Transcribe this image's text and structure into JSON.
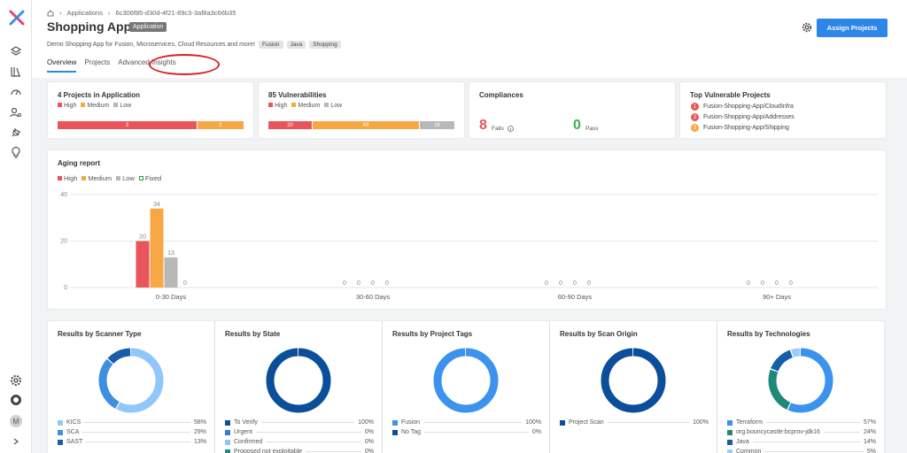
{
  "breadcrumb": {
    "home_icon": "home-icon",
    "applications": "Applications",
    "id": "6c306f85-d30d-4f21-89c3-3af8a3c66b35"
  },
  "header": {
    "title": "Shopping App",
    "badge": "Application",
    "description": "Demo Shopping App for Fusion, Microservices, Cloud Resources and more!",
    "tags": [
      "Fusion",
      "Java",
      "Shopping"
    ],
    "assign_button": "Assign Projects",
    "tabs": [
      "Overview",
      "Projects",
      "Advanced Insights"
    ]
  },
  "colors": {
    "high": "#e8555a",
    "medium": "#f7a743",
    "low": "#b8b8b8",
    "fixed": "#2e9b3a",
    "accent": "#2c87e8"
  },
  "projects_card": {
    "title": "4 Projects in Application",
    "legend": [
      "High",
      "Medium",
      "Low"
    ],
    "bar": {
      "high": 3,
      "medium": 1,
      "low": 0
    }
  },
  "vuln_card": {
    "title": "85 Vulnerabilities",
    "legend": [
      "High",
      "Medium",
      "Low"
    ],
    "bar": {
      "high": 20,
      "medium": 49,
      "low": 16
    }
  },
  "compliance_card": {
    "title": "Compliances",
    "fails_value": "8",
    "fails_label": "Fails",
    "pass_value": "0",
    "pass_label": "Pass"
  },
  "top_projects": {
    "title": "Top Vulnerable Projects",
    "items": [
      {
        "rank": "1",
        "name": "Fusion-Shopping-App/CloudInfra"
      },
      {
        "rank": "2",
        "name": "Fusion-Shopping-App/Addresses"
      },
      {
        "rank": "3",
        "name": "Fusion-Shopping-App/Shipping"
      }
    ]
  },
  "chart_data": {
    "type": "bar",
    "title": "Aging report",
    "categories": [
      "0-30 Days",
      "30-60 Days",
      "60-90 Days",
      "90+ Days"
    ],
    "series": [
      {
        "name": "High",
        "values": [
          20,
          0,
          0,
          0
        ]
      },
      {
        "name": "Medium",
        "values": [
          34,
          0,
          0,
          0
        ]
      },
      {
        "name": "Low",
        "values": [
          13,
          0,
          0,
          0
        ]
      },
      {
        "name": "Fixed",
        "values": [
          0,
          0,
          0,
          0
        ]
      }
    ],
    "yticks": [
      "0",
      "20",
      "40"
    ],
    "ylim": [
      0,
      40
    ],
    "grid": true,
    "legend": "top-left"
  },
  "results": [
    {
      "title": "Results by Scanner Type",
      "items": [
        {
          "label": "KICS",
          "pct": "58%",
          "value": 58,
          "color": "#90c7f8"
        },
        {
          "label": "SCA",
          "pct": "29%",
          "value": 29,
          "color": "#3d8fe0"
        },
        {
          "label": "SAST",
          "pct": "13%",
          "value": 13,
          "color": "#175ea8"
        }
      ]
    },
    {
      "title": "Results by State",
      "items": [
        {
          "label": "To Verify",
          "pct": "100%",
          "value": 100,
          "color": "#0b4e9a"
        },
        {
          "label": "Urgent",
          "pct": "0%",
          "value": 0,
          "color": "#2e7fd6"
        },
        {
          "label": "Confirmed",
          "pct": "0%",
          "value": 0,
          "color": "#8fc3f5"
        },
        {
          "label": "Proposed not exploitable",
          "pct": "0%",
          "value": 0,
          "color": "#1f8a7a"
        }
      ]
    },
    {
      "title": "Results by Project Tags",
      "items": [
        {
          "label": "Fusion",
          "pct": "100%",
          "value": 100,
          "color": "#3b93ee"
        },
        {
          "label": "No Tag",
          "pct": "0%",
          "value": 0,
          "color": "#0b4e9a"
        }
      ]
    },
    {
      "title": "Results by Scan Origin",
      "items": [
        {
          "label": "Project Scan",
          "pct": "100%",
          "value": 100,
          "color": "#0b4e9a"
        }
      ]
    },
    {
      "title": "Results by Technologies",
      "items": [
        {
          "label": "Terraform",
          "pct": "57%",
          "value": 57,
          "color": "#3b93ee"
        },
        {
          "label": "org.bouncycastle:bcprov-jdk16",
          "pct": "24%",
          "value": 24,
          "color": "#1f8a7a"
        },
        {
          "label": "Java",
          "pct": "14%",
          "value": 14,
          "color": "#175ea8"
        },
        {
          "label": "Common",
          "pct": "5%",
          "value": 5,
          "color": "#9fccf7"
        }
      ]
    }
  ]
}
